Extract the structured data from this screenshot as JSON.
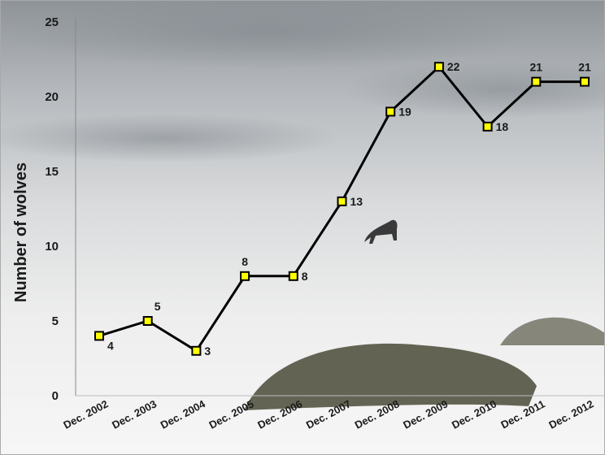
{
  "chart_data": {
    "type": "line",
    "y_label": "Number of wolves",
    "categories": [
      "Dec. 2002",
      "Dec. 2003",
      "Dec. 2004",
      "Dec. 2005",
      "Dec. 2006",
      "Dec. 2007",
      "Dec. 2008",
      "Dec. 2009",
      "Dec. 2010",
      "Dec. 2011",
      "Dec. 2012"
    ],
    "values": [
      4,
      5,
      3,
      8,
      8,
      13,
      19,
      22,
      18,
      21,
      21
    ],
    "color": "#000000",
    "marker_color": "#ffff00",
    "ylim": [
      0,
      25
    ],
    "yticks": [
      0,
      5,
      10,
      15,
      20,
      25
    ],
    "grid": false
  }
}
